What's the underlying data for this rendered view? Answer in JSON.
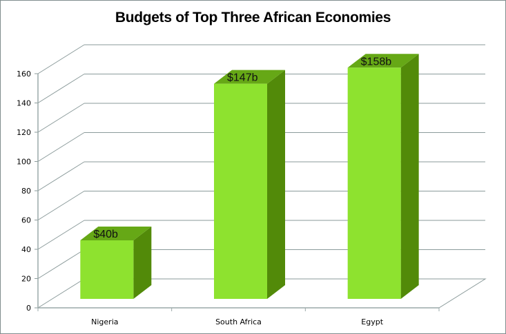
{
  "chart_data": {
    "type": "bar",
    "title": "Budgets of Top Three African Economies",
    "categories": [
      "Nigeria",
      "South Africa",
      "Egypt"
    ],
    "values": [
      40,
      147,
      158
    ],
    "data_labels": [
      "$40b",
      "$147b",
      "$158b"
    ],
    "xlabel": "",
    "ylabel": "",
    "ylim": [
      0,
      160
    ],
    "yticks": [
      0,
      20,
      40,
      60,
      80,
      100,
      120,
      140,
      160
    ],
    "grid": true,
    "legend": "none",
    "style": "3d-column",
    "colors": {
      "bar_front": "#8ee22f",
      "bar_top": "#66a816",
      "bar_side": "#528a09",
      "gridline": "#8a9a9a",
      "border": "#7f8c8d"
    }
  }
}
